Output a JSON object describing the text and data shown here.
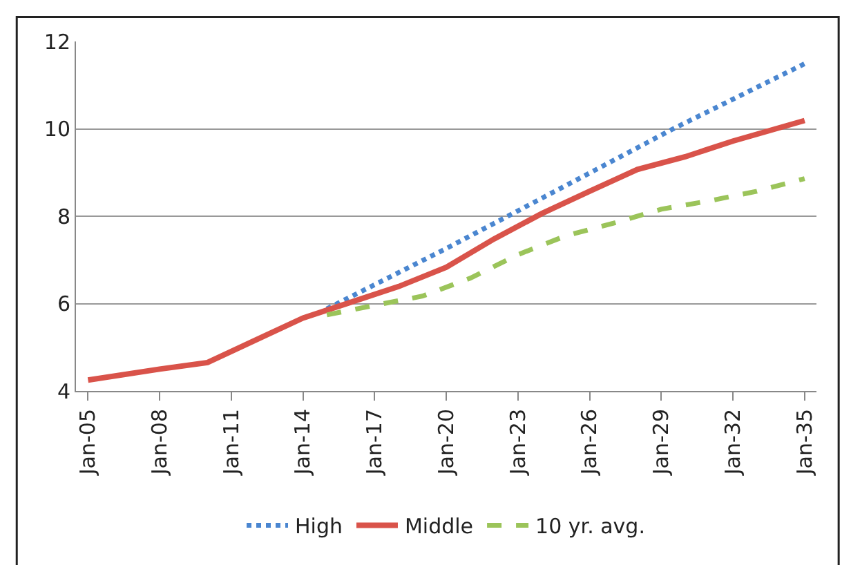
{
  "chart_data": {
    "type": "line",
    "xlim": [
      "2004-07-01",
      "2035-07-01"
    ],
    "xticks": [
      {
        "value": "2005-01",
        "label": "Jan-05"
      },
      {
        "value": "2008-01",
        "label": "Jan-08"
      },
      {
        "value": "2011-01",
        "label": "Jan-11"
      },
      {
        "value": "2014-01",
        "label": "Jan-14"
      },
      {
        "value": "2017-01",
        "label": "Jan-17"
      },
      {
        "value": "2020-01",
        "label": "Jan-20"
      },
      {
        "value": "2023-01",
        "label": "Jan-23"
      },
      {
        "value": "2026-01",
        "label": "Jan-26"
      },
      {
        "value": "2029-01",
        "label": "Jan-29"
      },
      {
        "value": "2032-01",
        "label": "Jan-32"
      },
      {
        "value": "2035-01",
        "label": "Jan-35"
      }
    ],
    "ylim": [
      4,
      12
    ],
    "yticks": [
      4,
      6,
      8,
      10,
      12
    ],
    "grid": "y",
    "legend": "bottom",
    "series": [
      {
        "name": "High",
        "color": "#4a86d0",
        "line_style": "dotted",
        "x": [
          "2015-01",
          "2020-01",
          "2025-01",
          "2029-07",
          "2035-01"
        ],
        "values": [
          5.88,
          7.26,
          8.7,
          10.0,
          11.49
        ]
      },
      {
        "name": "Middle",
        "color": "#d9534a",
        "line_style": "solid",
        "x": [
          "2005-01",
          "2008-01",
          "2010-01",
          "2012-01",
          "2014-01",
          "2016-01",
          "2018-01",
          "2020-01",
          "2022-01",
          "2024-01",
          "2026-01",
          "2028-01",
          "2030-01",
          "2032-01",
          "2035-01"
        ],
        "values": [
          4.25,
          4.5,
          4.65,
          5.16,
          5.67,
          6.03,
          6.39,
          6.83,
          7.48,
          8.06,
          8.57,
          9.07,
          9.36,
          9.72,
          10.19
        ]
      },
      {
        "name": "10 yr. avg.",
        "color": "#9bc45a",
        "line_style": "dashed",
        "x": [
          "2015-01",
          "2017-01",
          "2019-01",
          "2021-01",
          "2023-01",
          "2025-01",
          "2027-01",
          "2029-01",
          "2031-01",
          "2033-01",
          "2035-01"
        ],
        "values": [
          5.74,
          5.96,
          6.17,
          6.58,
          7.12,
          7.55,
          7.84,
          8.16,
          8.35,
          8.57,
          8.86
        ]
      }
    ]
  }
}
